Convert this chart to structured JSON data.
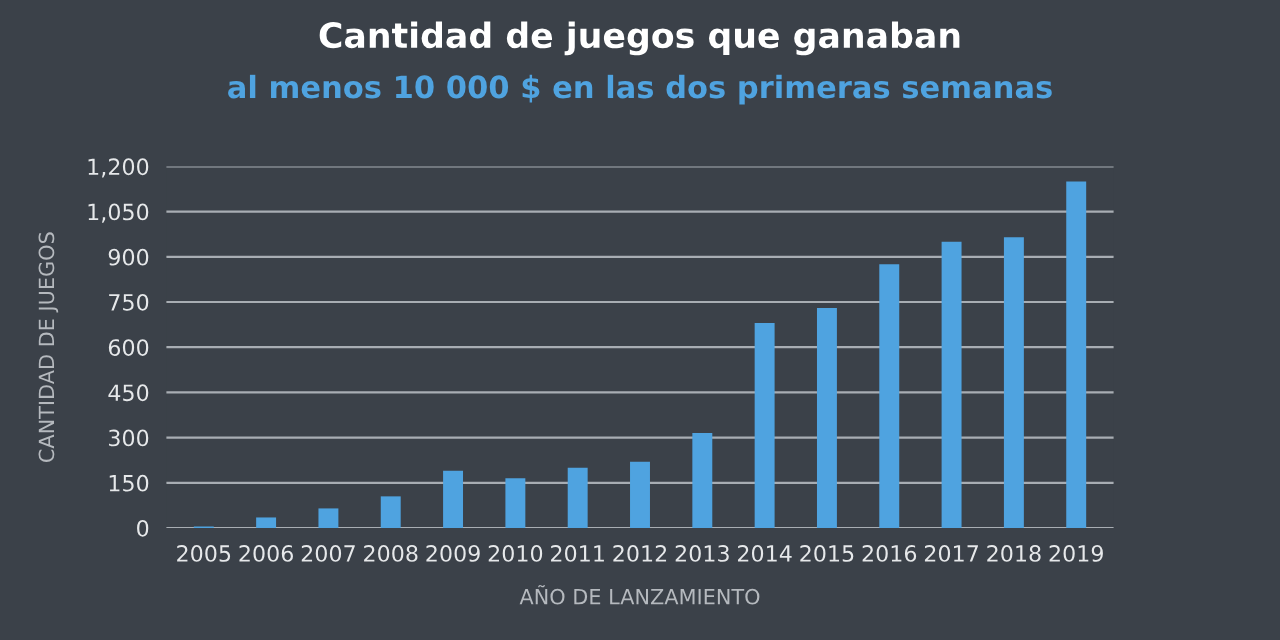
{
  "chart_data": {
    "type": "bar",
    "title": "Cantidad de juegos que ganaban",
    "subtitle": "al menos 10 000 $ en las dos primeras semanas",
    "xlabel": "AÑO DE LANZAMIENTO",
    "ylabel": "CANTIDAD DE JUEGOS",
    "categories": [
      "2005",
      "2006",
      "2007",
      "2008",
      "2009",
      "2010",
      "2011",
      "2012",
      "2013",
      "2014",
      "2015",
      "2016",
      "2017",
      "2018",
      "2019"
    ],
    "values": [
      5,
      35,
      65,
      105,
      190,
      165,
      200,
      220,
      315,
      680,
      730,
      875,
      950,
      965,
      1150
    ],
    "color": "#4fa3e0",
    "ylim": [
      0,
      1200
    ],
    "yticks": [
      {
        "value": 0,
        "label": "0"
      },
      {
        "value": 150,
        "label": "150"
      },
      {
        "value": 300,
        "label": "300"
      },
      {
        "value": 450,
        "label": "450"
      },
      {
        "value": 600,
        "label": "600"
      },
      {
        "value": 750,
        "label": "750"
      },
      {
        "value": 900,
        "label": "900"
      },
      {
        "value": 1050,
        "label": "1,050"
      },
      {
        "value": 1200,
        "label": "1,200"
      }
    ],
    "grid": "y"
  }
}
